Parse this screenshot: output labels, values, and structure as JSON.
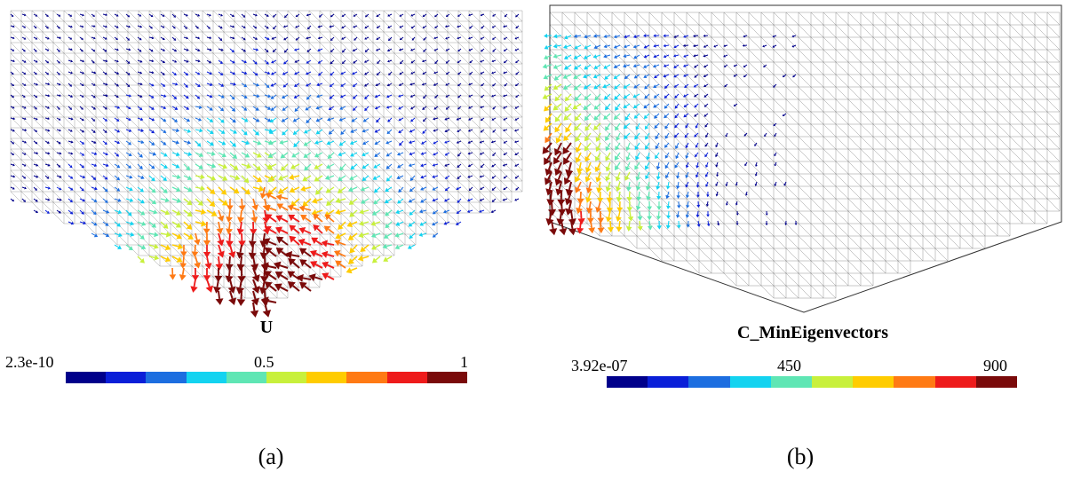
{
  "panels": [
    {
      "field_title": "U",
      "colorbar": {
        "min_label": "2.3e-10",
        "mid_label": "0.5",
        "max_label": "1"
      },
      "caption": "(a)"
    },
    {
      "field_title": "C_MinEigenvectors",
      "colorbar": {
        "min_label": "3.92e-07",
        "mid_label": "450",
        "max_label": "900"
      },
      "caption": "(b)"
    }
  ],
  "colormap": [
    "#00008b",
    "#0a1fd8",
    "#1c6ee0",
    "#13d3f0",
    "#5fe6b4",
    "#c8f03c",
    "#ffcc00",
    "#ff7a14",
    "#ee1b1b",
    "#7a0a0a"
  ]
}
